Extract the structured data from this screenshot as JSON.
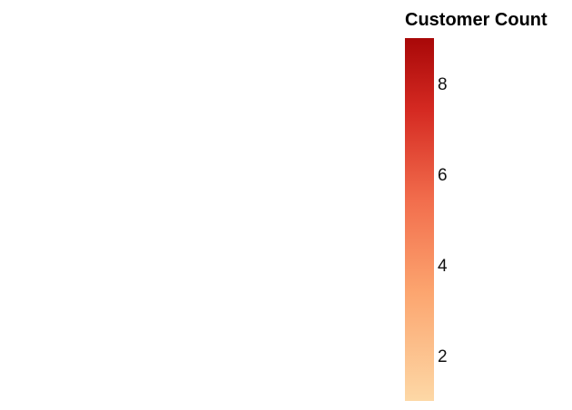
{
  "chart_data": {
    "type": "heatmap",
    "colorbar": {
      "title": "Customer Count",
      "min": 1,
      "max": 9,
      "ticks": [
        2,
        4,
        6,
        8
      ],
      "tick_labels": [
        "2",
        "4",
        "6",
        "8"
      ],
      "colorscale": [
        {
          "stop": 0.0,
          "color": "#fdd8a6"
        },
        {
          "stop": 0.3,
          "color": "#fca56f"
        },
        {
          "stop": 0.55,
          "color": "#f26e4d"
        },
        {
          "stop": 0.8,
          "color": "#d52a22"
        },
        {
          "stop": 1.0,
          "color": "#a80808"
        }
      ]
    }
  }
}
